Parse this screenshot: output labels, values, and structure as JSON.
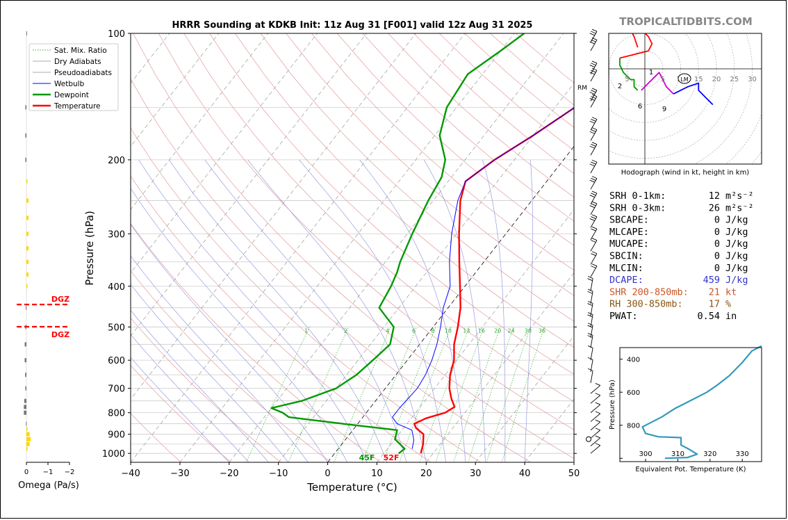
{
  "watermark": "TROPICALTIDBITS.COM",
  "chart_data": [
    {
      "type": "line",
      "title": "HRRR Sounding at KDKB Init: 11z Aug 31 [F001] valid 12z Aug 31 2025",
      "xlabel": "Temperature (°C)",
      "ylabel": "Pressure (hPa)",
      "xlim": [
        -40,
        50
      ],
      "ylim": [
        1050,
        100
      ],
      "y_scale": "log",
      "x_ticks": [
        "−40",
        "−30",
        "−20",
        "−10",
        "0",
        "10",
        "20",
        "30",
        "40",
        "50"
      ],
      "y_ticks": [
        "100",
        "200",
        "300",
        "400",
        "500",
        "600",
        "700",
        "800",
        "900",
        "1000"
      ],
      "legend": [
        "Sat. Mix. Ratio",
        "Dry Adiabats",
        "Pseudoadiabats",
        "Wetbulb",
        "Dewpoint",
        "Temperature"
      ],
      "legend_position": "top-left",
      "mixing_ratio_labels": [
        "1",
        "2",
        "4",
        "6",
        "8",
        "10",
        "13",
        "16",
        "20",
        "24",
        "30",
        "36"
      ],
      "surface_dewpoint_label": "45F",
      "surface_temperature_label": "52F",
      "series": [
        {
          "name": "Temperature",
          "color": "#ff0000",
          "points": [
            [
              17.5,
              1000
            ],
            [
              16.5,
              950
            ],
            [
              15,
              900
            ],
            [
              12.5,
              870
            ],
            [
              11.5,
              850
            ],
            [
              13,
              825
            ],
            [
              16,
              800
            ],
            [
              17,
              775
            ],
            [
              15,
              740
            ],
            [
              13,
              700
            ],
            [
              11,
              650
            ],
            [
              9.5,
              600
            ],
            [
              7,
              550
            ],
            [
              5,
              500
            ],
            [
              2.5,
              450
            ],
            [
              -1,
              400
            ],
            [
              -5,
              350
            ],
            [
              -9.5,
              300
            ],
            [
              -14.5,
              250
            ],
            [
              -16.5,
              225
            ],
            [
              -14,
              200
            ],
            [
              -10,
              175
            ],
            [
              -6,
              150
            ],
            [
              -3,
              125
            ],
            [
              -1,
              110
            ],
            [
              1,
              100
            ]
          ]
        },
        {
          "name": "Wetbulb",
          "color": "#0000ff",
          "points": [
            [
              15,
              975
            ],
            [
              14,
              930
            ],
            [
              12,
              880
            ],
            [
              8,
              850
            ],
            [
              6,
              820
            ],
            [
              6,
              780
            ],
            [
              6.5,
              700
            ],
            [
              6,
              650
            ],
            [
              5,
              600
            ],
            [
              3.5,
              550
            ],
            [
              1.5,
              500
            ],
            [
              -1,
              450
            ],
            [
              -3,
              400
            ],
            [
              -7,
              350
            ],
            [
              -11,
              300
            ],
            [
              -15,
              250
            ],
            [
              -16.5,
              225
            ],
            [
              -14,
              200
            ],
            [
              -10,
              175
            ],
            [
              -6,
              150
            ],
            [
              -3,
              125
            ],
            [
              -1,
              110
            ],
            [
              1,
              100
            ]
          ]
        },
        {
          "name": "Dewpoint",
          "color": "#009900",
          "points": [
            [
              13,
              1000
            ],
            [
              13.5,
              975
            ],
            [
              10,
              925
            ],
            [
              9,
              880
            ],
            [
              -3,
              850
            ],
            [
              -15,
              820
            ],
            [
              -17,
              800
            ],
            [
              -20,
              780
            ],
            [
              -15,
              750
            ],
            [
              -10,
              700
            ],
            [
              -8,
              650
            ],
            [
              -7,
              600
            ],
            [
              -6,
              550
            ],
            [
              -8,
              500
            ],
            [
              -14,
              450
            ],
            [
              -15,
              400
            ],
            [
              -16,
              370
            ],
            [
              -17,
              350
            ],
            [
              -19,
              300
            ],
            [
              -21,
              250
            ],
            [
              -22,
              220
            ],
            [
              -24,
              200
            ],
            [
              -29,
              175
            ],
            [
              -32,
              150
            ],
            [
              -33,
              125
            ],
            [
              -30,
              110
            ],
            [
              -28,
              100
            ]
          ]
        }
      ]
    },
    {
      "type": "bar",
      "xlabel": "Omega (Pa/s)",
      "x_ticks": [
        "0",
        "−1",
        "−2"
      ],
      "dgz_label": "DGZ",
      "values_note": ""
    },
    {
      "type": "line",
      "title": "",
      "xlabel": "Hodograph (wind in kt, height in km)",
      "ring_labels": [
        "5",
        "10",
        "15",
        "20",
        "25",
        "30"
      ],
      "axis_labels_left": [
        "5"
      ],
      "height_labels": [
        "1",
        "2",
        "6",
        "9"
      ],
      "storm_motion_label": "LM",
      "series": [
        {
          "name": "0-1 km",
          "color": "#ff0000",
          "points": [
            [
              -2,
              6
            ],
            [
              -3,
              9
            ],
            [
              -4,
              11
            ],
            [
              -3,
              12
            ],
            [
              -1,
              11
            ],
            [
              1,
              9
            ],
            [
              2,
              7
            ],
            [
              1,
              5
            ],
            [
              -3,
              4
            ],
            [
              -7,
              3
            ]
          ]
        },
        {
          "name": "1-3 km",
          "color": "#009900",
          "points": [
            [
              -7,
              3
            ],
            [
              -7,
              1
            ],
            [
              -6,
              -1
            ],
            [
              -4,
              -3
            ],
            [
              -3,
              -3
            ],
            [
              -3,
              -5
            ],
            [
              -2,
              -6
            ]
          ]
        },
        {
          "name": "3-6 km",
          "color": "#cc00cc",
          "points": [
            [
              -1,
              -6
            ],
            [
              1,
              -4
            ],
            [
              3,
              -2
            ],
            [
              4,
              -1
            ],
            [
              5,
              -3
            ],
            [
              6,
              -5
            ],
            [
              7,
              -6
            ],
            [
              8,
              -7
            ]
          ]
        },
        {
          "name": "6-9 km",
          "color": "#0000ff",
          "points": [
            [
              8,
              -7
            ],
            [
              10,
              -6
            ],
            [
              12,
              -5
            ],
            [
              15,
              -4
            ],
            [
              15,
              -6
            ],
            [
              17,
              -8
            ],
            [
              19,
              -10
            ]
          ]
        }
      ]
    },
    {
      "type": "line",
      "xlabel": "Equivalent Pot. Temperature (K)",
      "ylabel": "Pressure (hPa)",
      "x_ticks": [
        "300",
        "310",
        "320",
        "330"
      ],
      "y_ticks": [
        "400",
        "600",
        "800"
      ],
      "color": "#3399bb",
      "points": [
        [
          306,
          1000
        ],
        [
          313,
          995
        ],
        [
          316,
          975
        ],
        [
          313,
          940
        ],
        [
          311,
          920
        ],
        [
          311,
          875
        ],
        [
          304,
          870
        ],
        [
          300,
          850
        ],
        [
          299,
          810
        ],
        [
          301,
          790
        ],
        [
          305,
          750
        ],
        [
          309,
          700
        ],
        [
          314,
          650
        ],
        [
          319,
          600
        ],
        [
          322,
          560
        ],
        [
          326,
          500
        ],
        [
          330,
          420
        ],
        [
          333,
          350
        ],
        [
          336,
          320
        ]
      ]
    }
  ],
  "indices": [
    {
      "label": "SRH 0-1km:",
      "value": "12",
      "unit_html": "m²s⁻²",
      "color": "#000000"
    },
    {
      "label": "SRH 0-3km:",
      "value": "26",
      "unit_html": "m²s⁻²",
      "color": "#000000"
    },
    {
      "label": "SBCAPE:",
      "value": "0",
      "unit_html": "J/kg",
      "color": "#000000"
    },
    {
      "label": "MLCAPE:",
      "value": "0",
      "unit_html": "J/kg",
      "color": "#000000"
    },
    {
      "label": "MUCAPE:",
      "value": "0",
      "unit_html": "J/kg",
      "color": "#000000"
    },
    {
      "label": "SBCIN:",
      "value": "0",
      "unit_html": "J/kg",
      "color": "#000000"
    },
    {
      "label": "MLCIN:",
      "value": "0",
      "unit_html": "J/kg",
      "color": "#000000"
    },
    {
      "label": "DCAPE:",
      "value": "459",
      "unit_html": "J/kg",
      "color": "#3333cc"
    },
    {
      "label": "SHR 200-850mb:",
      "value": "21",
      "unit_html": "kt",
      "color": "#cc5522"
    },
    {
      "label": "RH 300-850mb:",
      "value": "17",
      "unit_html": "%",
      "color": "#885511"
    },
    {
      "label": "PWAT:",
      "value": "0.54",
      "unit_html": "in",
      "color": "#000000"
    }
  ],
  "rm_label": "RM"
}
